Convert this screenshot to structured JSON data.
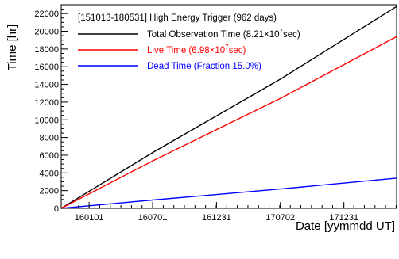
{
  "chart_data": {
    "type": "line",
    "title": "[151013-180531] High Energy Trigger (962 days)",
    "xlabel": "Date [yymmdd UT]",
    "ylabel": "Time [hr]",
    "x_tick_labels": [
      "160101",
      "160701",
      "161231",
      "170702",
      "171231"
    ],
    "x_tick_dates": [
      "2016-01-01",
      "2016-07-01",
      "2016-12-31",
      "2017-07-02",
      "2017-12-31"
    ],
    "xlim": [
      "2015-10-13",
      "2018-05-31"
    ],
    "ylim": [
      0,
      23000
    ],
    "y_ticks": [
      0,
      2000,
      4000,
      6000,
      8000,
      10000,
      12000,
      14000,
      16000,
      18000,
      20000,
      22000
    ],
    "grid": false,
    "legend_position": "top-left",
    "series": [
      {
        "name": "Total Observation Time (8.21×10⁷sec)",
        "legend": {
          "prefix": "Total Observation Time (8.21×10",
          "sup": "7",
          "suffix": "sec)"
        },
        "color": "#000000",
        "x": [
          "2015-10-13",
          "2016-07-01",
          "2017-07-02",
          "2018-05-31"
        ],
        "y": [
          0,
          6300,
          14600,
          22800
        ]
      },
      {
        "name": "Live Time (6.98×10⁷sec)",
        "legend": {
          "prefix": "Live Time  (6.98×10",
          "sup": "7",
          "suffix": "sec)"
        },
        "color": "#ff0000",
        "x": [
          "2015-10-13",
          "2016-07-01",
          "2017-07-02",
          "2018-05-31"
        ],
        "y": [
          0,
          5360,
          12420,
          19390
        ]
      },
      {
        "name": "Dead Time (Fraction 15.0%)",
        "legend": {
          "prefix": "Dead Time  (Fraction 15.0%)",
          "sup": "",
          "suffix": ""
        },
        "color": "#0000ff",
        "x": [
          "2015-10-13",
          "2016-07-01",
          "2017-07-02",
          "2018-05-31"
        ],
        "y": [
          0,
          940,
          2180,
          3410
        ]
      }
    ]
  }
}
